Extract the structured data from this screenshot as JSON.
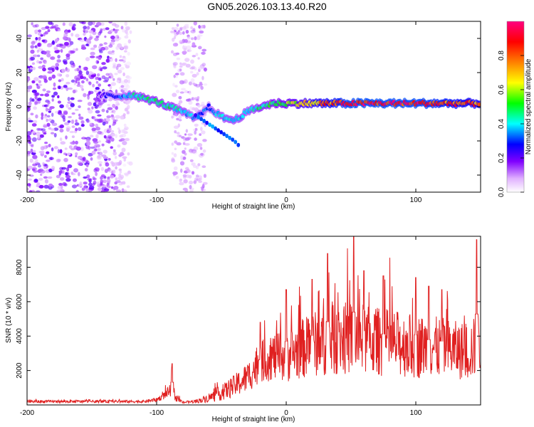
{
  "figure_title": "GN05.2026.103.13.40.R20",
  "chart_data": [
    {
      "type": "heatmap",
      "xlabel": "Height of straight line (km)",
      "ylabel": "Frequency (Hz)",
      "xlim": [
        -200,
        150
      ],
      "ylim": [
        -50,
        50
      ],
      "xticks": [
        -200,
        -100,
        0,
        100
      ],
      "yticks": [
        -40,
        -20,
        0,
        20,
        40
      ],
      "colorbar": {
        "label": "Normalized spectral amplitude",
        "range": [
          0,
          1
        ],
        "ticks": [
          "0.0",
          "0.2",
          "0.4",
          "0.6",
          "0.8"
        ],
        "colors": [
          "#ffffff",
          "#e0b0ff",
          "#8000ff",
          "#0000ff",
          "#00ffff",
          "#00ff00",
          "#ffff00",
          "#ff8000",
          "#ff0000",
          "#ff0080"
        ]
      },
      "ridge": {
        "x": [
          -145,
          -130,
          -120,
          -110,
          -100,
          -90,
          -80,
          -70,
          -60,
          -50,
          -40,
          -30,
          -20,
          -10,
          0,
          20,
          50,
          100,
          150
        ],
        "y": [
          7,
          6,
          7,
          5,
          3,
          0,
          -3,
          -7,
          0,
          -6,
          -8,
          -3,
          0,
          2,
          2,
          2,
          2,
          2,
          2
        ],
        "amplitude": [
          0.2,
          0.3,
          0.4,
          0.45,
          0.45,
          0.45,
          0.4,
          0.35,
          0.3,
          0.4,
          0.4,
          0.4,
          0.45,
          0.5,
          0.55,
          0.7,
          0.9,
          0.9,
          0.75
        ]
      },
      "branch": {
        "x": [
          -70,
          -60,
          -50,
          -40,
          -35
        ],
        "y": [
          -5,
          -10,
          -15,
          -20,
          -24
        ]
      },
      "noise_regions": [
        [
          -200,
          -120
        ],
        [
          -88,
          -62
        ]
      ]
    },
    {
      "type": "line",
      "xlabel": "Height of straight line (km)",
      "ylabel": "SNR (10 * v/v)",
      "xlim": [
        -200,
        150
      ],
      "ylim": [
        0,
        9800
      ],
      "xticks": [
        -200,
        -100,
        0,
        100
      ],
      "yticks": [
        2000,
        4000,
        6000,
        8000
      ],
      "color": "#e02020",
      "envelope": {
        "x": [
          -200,
          -110,
          -100,
          -95,
          -90,
          -88,
          -85,
          -80,
          -70,
          -60,
          -50,
          -40,
          -30,
          -20,
          -10,
          0,
          10,
          20,
          30,
          40,
          50,
          60,
          70,
          80,
          90,
          100,
          110,
          120,
          130,
          140,
          150
        ],
        "mean": [
          200,
          200,
          300,
          500,
          800,
          1000,
          400,
          150,
          200,
          400,
          700,
          1100,
          1600,
          2500,
          2800,
          2800,
          3200,
          3500,
          3700,
          3800,
          3900,
          3800,
          3700,
          3600,
          3500,
          3400,
          3400,
          3300,
          3200,
          3100,
          3500
        ],
        "spread": [
          80,
          80,
          120,
          200,
          350,
          450,
          200,
          60,
          100,
          250,
          450,
          650,
          900,
          1200,
          1400,
          1500,
          1700,
          1900,
          2000,
          2100,
          2200,
          2100,
          2000,
          2000,
          1900,
          1900,
          1800,
          1800,
          1700,
          1700,
          1900
        ]
      },
      "peaks": [
        {
          "x": -88,
          "y": 2400
        },
        {
          "x": -20,
          "y": 4800
        },
        {
          "x": 0,
          "y": 6700
        },
        {
          "x": 20,
          "y": 7300
        },
        {
          "x": 32,
          "y": 8800
        },
        {
          "x": 52,
          "y": 9800
        },
        {
          "x": 60,
          "y": 7800
        },
        {
          "x": 75,
          "y": 7500
        },
        {
          "x": 100,
          "y": 7400
        },
        {
          "x": 110,
          "y": 6900
        },
        {
          "x": 120,
          "y": 6700
        },
        {
          "x": 147,
          "y": 9600
        }
      ],
      "sample_count": 1200
    }
  ]
}
